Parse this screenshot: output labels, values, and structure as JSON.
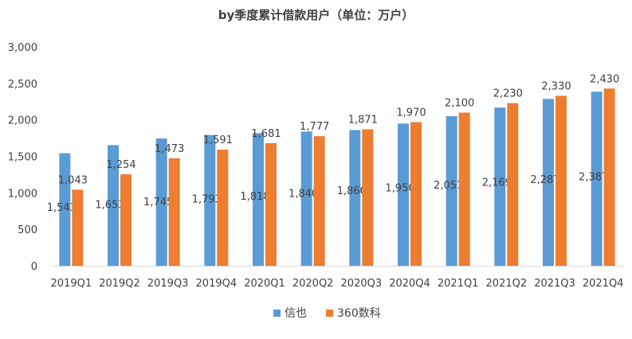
{
  "chart_data": {
    "type": "bar",
    "title": "by季度累计借款用户（单位：万户）",
    "categories": [
      "2019Q1",
      "2019Q2",
      "2019Q3",
      "2019Q4",
      "2020Q1",
      "2020Q2",
      "2020Q3",
      "2020Q4",
      "2021Q1",
      "2021Q2",
      "2021Q3",
      "2021Q4"
    ],
    "series": [
      {
        "name": "信也",
        "color": "#5B9BD5",
        "values": [
          1543,
          1653,
          1745,
          1793,
          1818,
          1840,
          1860,
          1950,
          2051,
          2169,
          2287,
          2387
        ]
      },
      {
        "name": "360数科",
        "color": "#ED7D31",
        "values": [
          1043,
          1254,
          1473,
          1591,
          1681,
          1777,
          1871,
          1970,
          2100,
          2230,
          2330,
          2430
        ]
      }
    ],
    "ylim": [
      0,
      3000
    ],
    "yticks": [
      "0",
      "500",
      "1,000",
      "1,500",
      "2,000",
      "2,500",
      "3,000"
    ],
    "ytick_values": [
      0,
      500,
      1000,
      1500,
      2000,
      2500,
      3000
    ],
    "grid": false,
    "legend_position": "bottom",
    "colors": {
      "axis": "#d9d9d9",
      "text": "#404040"
    }
  }
}
